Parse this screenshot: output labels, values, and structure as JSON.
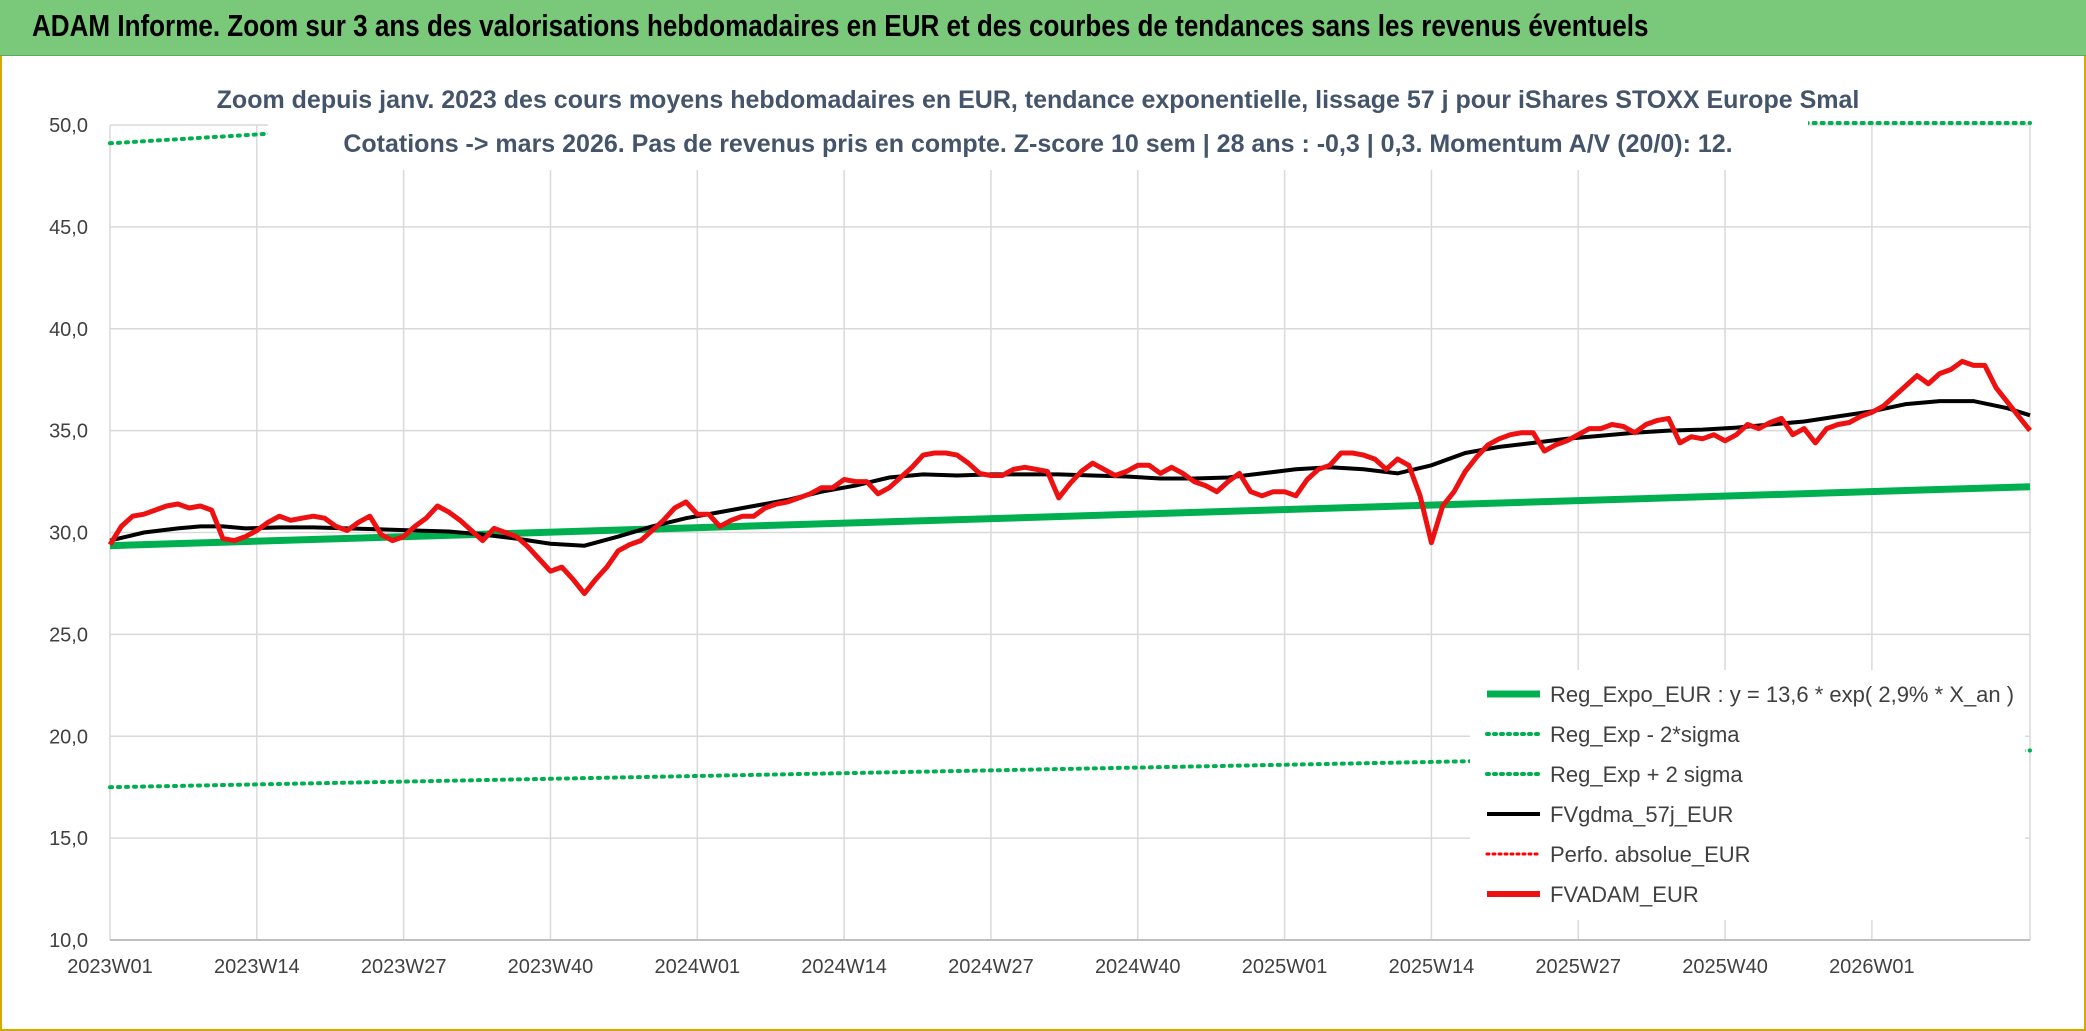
{
  "header": {
    "title": "ADAM Informe. Zoom sur 3 ans des valorisations hebdomadaires en EUR et des courbes de tendances sans les revenus éventuels"
  },
  "colors": {
    "header_bg": "#7ac87a",
    "reg_expo": "#00b050",
    "sigma": "#00b050",
    "fvgdma": "#000000",
    "perfo": "#ff0000",
    "fvadam": "#ee1111",
    "grid": "#d9d9d9",
    "frame": "#d6a800"
  },
  "chart_data": {
    "type": "line",
    "title_line1": "Zoom depuis janv. 2023 des cours moyens hebdomadaires en EUR, tendance exponentielle, lissage 57 j pour iShares STOXX Europe Smal",
    "title_line2": "Cotations -> mars 2026. Pas de revenus pris en compte. Z-score 10 sem | 28 ans : -0,3 | 0,3. Momentum A/V (20/0): 12.",
    "xlabel": "",
    "ylabel": "",
    "ylim": [
      10,
      50
    ],
    "y_ticks": [
      "10,0",
      "15,0",
      "20,0",
      "25,0",
      "30,0",
      "35,0",
      "40,0",
      "45,0",
      "50,0"
    ],
    "x_tick_labels": [
      "2023W01",
      "2023W14",
      "2023W27",
      "2023W40",
      "2024W01",
      "2024W14",
      "2024W27",
      "2024W40",
      "2025W01",
      "2025W14",
      "2025W27",
      "2025W40",
      "2026W01"
    ],
    "x_range_weeks": [
      0,
      170
    ],
    "grid": true,
    "legend_position": "bottom-right",
    "series": [
      {
        "key": "reg_expo",
        "name": "Reg_Expo_EUR : y = 13,6 * exp( 2,9% *  X_an )",
        "style": "solid-thick",
        "x": [
          0,
          170
        ],
        "values": [
          29.35,
          32.25
        ]
      },
      {
        "key": "minus2sigma",
        "name": "Reg_Exp - 2*sigma",
        "style": "dotted",
        "x": [
          0,
          170
        ],
        "values": [
          17.5,
          19.3
        ]
      },
      {
        "key": "plus2sigma",
        "name": "Reg_Exp + 2 sigma",
        "style": "dotted",
        "x": [
          0,
          15,
          150,
          170
        ],
        "values": [
          49.1,
          49.6,
          50.1,
          50.1
        ]
      },
      {
        "key": "fvgdma",
        "name": "FVgdma_57j_EUR",
        "style": "solid",
        "x": [
          0,
          3,
          6,
          8,
          10,
          12,
          15,
          18,
          21,
          24,
          27,
          30,
          33,
          36,
          39,
          42,
          45,
          48,
          51,
          54,
          57,
          60,
          63,
          66,
          69,
          72,
          75,
          78,
          81,
          84,
          87,
          90,
          93,
          96,
          99,
          102,
          105,
          108,
          111,
          114,
          117,
          120,
          123,
          126,
          129,
          132,
          135,
          138,
          141,
          144,
          147,
          150,
          153,
          156,
          159,
          162,
          165,
          168,
          170
        ],
        "values": [
          29.6,
          30.0,
          30.2,
          30.3,
          30.3,
          30.2,
          30.25,
          30.25,
          30.2,
          30.15,
          30.1,
          30.05,
          29.9,
          29.7,
          29.45,
          29.35,
          29.8,
          30.3,
          30.7,
          31.0,
          31.3,
          31.6,
          32.0,
          32.3,
          32.7,
          32.85,
          32.8,
          32.85,
          32.85,
          32.85,
          32.8,
          32.75,
          32.65,
          32.65,
          32.7,
          32.9,
          33.1,
          33.2,
          33.1,
          32.9,
          33.3,
          33.9,
          34.2,
          34.4,
          34.6,
          34.75,
          34.9,
          35.0,
          35.05,
          35.15,
          35.3,
          35.45,
          35.7,
          35.95,
          36.3,
          36.45,
          36.45,
          36.1,
          35.75
        ]
      },
      {
        "key": "perfo",
        "name": "Perfo. absolue_EUR",
        "style": "dotted",
        "x": [],
        "values": []
      },
      {
        "key": "fvadam",
        "name": "FVADAM_EUR",
        "style": "solid-thick",
        "x": [
          0,
          1,
          2,
          3,
          4,
          5,
          6,
          7,
          8,
          9,
          10,
          11,
          12,
          13,
          14,
          15,
          16,
          17,
          18,
          19,
          20,
          21,
          22,
          23,
          24,
          25,
          26,
          27,
          28,
          29,
          30,
          31,
          32,
          33,
          34,
          35,
          36,
          37,
          38,
          39,
          40,
          41,
          42,
          43,
          44,
          45,
          46,
          47,
          48,
          49,
          50,
          51,
          52,
          53,
          54,
          55,
          56,
          57,
          58,
          59,
          60,
          61,
          62,
          63,
          64,
          65,
          66,
          67,
          68,
          69,
          70,
          71,
          72,
          73,
          74,
          75,
          76,
          77,
          78,
          79,
          80,
          81,
          82,
          83,
          84,
          85,
          86,
          87,
          88,
          89,
          90,
          91,
          92,
          93,
          94,
          95,
          96,
          97,
          98,
          99,
          100,
          101,
          102,
          103,
          104,
          105,
          106,
          107,
          108,
          109,
          110,
          111,
          112,
          113,
          114,
          115,
          116,
          117,
          118,
          119,
          120,
          121,
          122,
          123,
          124,
          125,
          126,
          127,
          128,
          129,
          130,
          131,
          132,
          133,
          134,
          135,
          136,
          137,
          138,
          139,
          140,
          141,
          142,
          143,
          144,
          145,
          146,
          147,
          148,
          149,
          150,
          151,
          152,
          153,
          154,
          155,
          156,
          157,
          158,
          159,
          160,
          161,
          162,
          163,
          164,
          165,
          166,
          167,
          168,
          169,
          170
        ],
        "values": [
          29.4,
          30.3,
          30.8,
          30.9,
          31.1,
          31.3,
          31.4,
          31.2,
          31.3,
          31.1,
          29.7,
          29.6,
          29.8,
          30.1,
          30.5,
          30.8,
          30.6,
          30.7,
          30.8,
          30.7,
          30.3,
          30.1,
          30.5,
          30.8,
          29.9,
          29.6,
          29.8,
          30.3,
          30.7,
          31.3,
          31.0,
          30.6,
          30.1,
          29.6,
          30.2,
          30.0,
          29.8,
          29.3,
          28.7,
          28.1,
          28.3,
          27.7,
          27.0,
          27.7,
          28.3,
          29.1,
          29.4,
          29.6,
          30.1,
          30.6,
          31.2,
          31.5,
          30.9,
          30.9,
          30.3,
          30.6,
          30.8,
          30.8,
          31.2,
          31.4,
          31.5,
          31.7,
          31.9,
          32.2,
          32.2,
          32.6,
          32.5,
          32.5,
          31.9,
          32.2,
          32.7,
          33.2,
          33.8,
          33.9,
          33.9,
          33.8,
          33.4,
          32.9,
          32.8,
          32.8,
          33.1,
          33.2,
          33.1,
          33.0,
          31.7,
          32.4,
          33.0,
          33.4,
          33.1,
          32.8,
          33.0,
          33.3,
          33.3,
          32.9,
          33.2,
          32.9,
          32.5,
          32.3,
          32.0,
          32.5,
          32.9,
          32.0,
          31.8,
          32.0,
          32.0,
          31.8,
          32.6,
          33.1,
          33.3,
          33.9,
          33.9,
          33.8,
          33.6,
          33.1,
          33.6,
          33.3,
          31.8,
          29.5,
          31.3,
          32.0,
          33.0,
          33.7,
          34.3,
          34.6,
          34.8,
          34.9,
          34.9,
          34.0,
          34.3,
          34.5,
          34.8,
          35.1,
          35.1,
          35.3,
          35.2,
          34.9,
          35.3,
          35.5,
          35.6,
          34.4,
          34.7,
          34.6,
          34.8,
          34.5,
          34.8,
          35.3,
          35.1,
          35.4,
          35.6,
          34.8,
          35.1,
          34.4,
          35.1,
          35.3,
          35.4,
          35.7,
          35.9,
          36.2,
          36.7,
          37.2,
          37.7,
          37.3,
          37.8,
          38.0,
          38.4,
          38.2,
          38.2,
          37.1,
          36.4,
          35.7,
          35.0
        ]
      }
    ]
  }
}
